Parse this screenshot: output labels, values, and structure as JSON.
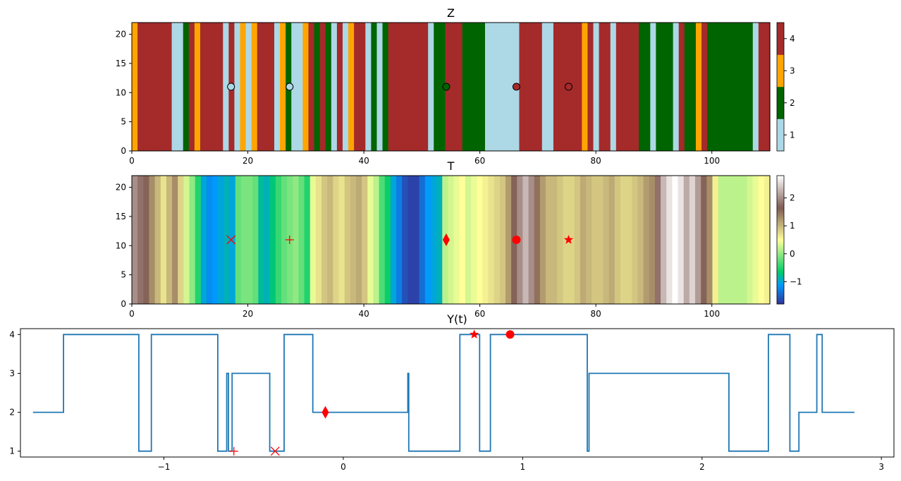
{
  "chart_data": [
    {
      "type": "heatmap",
      "title": "Z",
      "xlim": [
        0,
        110
      ],
      "ylim": [
        0,
        22
      ],
      "x_ticks": [
        0,
        20,
        40,
        60,
        80,
        100
      ],
      "y_ticks": [
        0,
        5,
        10,
        15,
        20
      ],
      "colorbar": {
        "kind": "discrete",
        "ticks": [
          1,
          2,
          3,
          4
        ],
        "levels": [
          {
            "value": 1,
            "color": "#add8e6"
          },
          {
            "value": 2,
            "color": "#006400"
          },
          {
            "value": 3,
            "color": "#ffa500"
          },
          {
            "value": 4,
            "color": "#a52a2a"
          }
        ]
      },
      "column_values": [
        3,
        4,
        4,
        4,
        4,
        4,
        4,
        1,
        1,
        2,
        4,
        3,
        4,
        4,
        4,
        4,
        1,
        4,
        1,
        3,
        1,
        3,
        4,
        4,
        4,
        1,
        3,
        2,
        1,
        1,
        3,
        4,
        2,
        4,
        2,
        1,
        4,
        1,
        3,
        4,
        4,
        1,
        2,
        1,
        2,
        4,
        4,
        4,
        4,
        4,
        4,
        4,
        1,
        2,
        2,
        4,
        4,
        4,
        2,
        2,
        2,
        2,
        1,
        1,
        1,
        1,
        1,
        1,
        4,
        4,
        4,
        4,
        1,
        1,
        4,
        4,
        4,
        4,
        4,
        3,
        4,
        1,
        4,
        4,
        1,
        4,
        4,
        4,
        4,
        2,
        2,
        1,
        2,
        2,
        2,
        1,
        4,
        2,
        2,
        3,
        4,
        2,
        2,
        2,
        2,
        2,
        2,
        2,
        2,
        1,
        4,
        4
      ],
      "markers": [
        {
          "x": 17.1,
          "y": 11,
          "shape": "circle-open",
          "fill": "#add8e6"
        },
        {
          "x": 27.2,
          "y": 11,
          "shape": "circle-open",
          "fill": "#add8e6"
        },
        {
          "x": 54.2,
          "y": 11,
          "shape": "circle-open",
          "fill": "#006400"
        },
        {
          "x": 66.3,
          "y": 11,
          "shape": "circle-open",
          "fill": "#a52a2a"
        },
        {
          "x": 75.3,
          "y": 11,
          "shape": "circle-open",
          "fill": "#a52a2a"
        }
      ]
    },
    {
      "type": "heatmap",
      "title": "T",
      "xlim": [
        0,
        110
      ],
      "ylim": [
        0,
        22
      ],
      "x_ticks": [
        0,
        20,
        40,
        60,
        80,
        100
      ],
      "y_ticks": [
        0,
        5,
        10,
        15,
        20
      ],
      "colorbar": {
        "kind": "continuous",
        "colormap": "terrain",
        "vmin": -1.8,
        "vmax": 2.8,
        "ticks": [
          -1,
          0,
          1,
          2
        ]
      },
      "column_values": [
        2.0,
        1.8,
        1.6,
        1.3,
        1.0,
        0.7,
        1.0,
        1.3,
        0.8,
        0.3,
        0.0,
        -0.5,
        -1.0,
        -1.2,
        -1.1,
        -1.0,
        -0.9,
        -1.0,
        -0.2,
        -0.1,
        -0.1,
        -0.2,
        -0.8,
        -0.9,
        -0.7,
        -0.4,
        -0.2,
        -0.1,
        0.0,
        -0.2,
        -0.5,
        0.4,
        0.7,
        0.9,
        1.0,
        0.8,
        0.7,
        0.9,
        1.0,
        1.1,
        0.9,
        0.4,
        0.2,
        -0.3,
        -0.6,
        -1.0,
        -1.3,
        -1.6,
        -1.7,
        -1.7,
        -1.4,
        -1.1,
        -1.0,
        -0.9,
        0.2,
        0.3,
        0.4,
        0.5,
        0.3,
        0.4,
        0.5,
        0.6,
        0.7,
        0.8,
        0.9,
        1.2,
        1.6,
        2.0,
        2.3,
        2.0,
        1.5,
        1.2,
        1.0,
        1.0,
        0.9,
        0.8,
        0.8,
        0.9,
        1.1,
        1.0,
        0.9,
        0.9,
        1.0,
        1.1,
        0.9,
        0.8,
        0.8,
        0.9,
        1.0,
        1.2,
        1.3,
        1.8,
        2.3,
        2.6,
        2.8,
        2.6,
        2.2,
        2.5,
        2.1,
        1.6,
        1.3,
        0.6,
        0.2,
        0.2,
        0.2,
        0.2,
        0.2,
        0.3,
        0.4,
        0.5,
        0.6
      ],
      "markers": [
        {
          "x": 17.1,
          "y": 11,
          "shape": "x"
        },
        {
          "x": 27.2,
          "y": 11,
          "shape": "plus"
        },
        {
          "x": 54.2,
          "y": 11,
          "shape": "diamond"
        },
        {
          "x": 66.3,
          "y": 11,
          "shape": "circle"
        },
        {
          "x": 75.3,
          "y": 11,
          "shape": "star"
        }
      ]
    },
    {
      "type": "line",
      "title": "Y(t)",
      "xlim": [
        -1.8,
        3.07
      ],
      "ylim": [
        0.85,
        4.15
      ],
      "x_ticks": [
        -1,
        0,
        1,
        2,
        3
      ],
      "y_ticks": [
        1,
        2,
        3,
        4
      ],
      "step_x": [
        -1.73,
        -1.56,
        -1.56,
        -1.14,
        -1.14,
        -1.07,
        -1.07,
        -0.7,
        -0.7,
        -0.65,
        -0.65,
        -0.64,
        -0.64,
        -0.62,
        -0.62,
        -0.41,
        -0.41,
        -0.33,
        -0.33,
        -0.17,
        -0.17,
        0.36,
        0.36,
        0.365,
        0.365,
        0.65,
        0.65,
        0.76,
        0.76,
        0.82,
        0.82,
        1.36,
        1.36,
        1.37,
        1.37,
        2.15,
        2.15,
        2.37,
        2.37,
        2.49,
        2.49,
        2.54,
        2.54,
        2.64,
        2.64,
        2.67,
        2.67,
        2.85
      ],
      "step_y": [
        2,
        2,
        4,
        4,
        1,
        1,
        4,
        4,
        1,
        1,
        3,
        3,
        1,
        1,
        3,
        3,
        1,
        1,
        4,
        4,
        2,
        2,
        3,
        3,
        1,
        1,
        4,
        4,
        1,
        1,
        4,
        4,
        1,
        1,
        3,
        3,
        1,
        1,
        4,
        4,
        1,
        1,
        2,
        2,
        4,
        4,
        2,
        2
      ],
      "markers": [
        {
          "x": -0.61,
          "y": 1.0,
          "shape": "plus"
        },
        {
          "x": -0.38,
          "y": 1.0,
          "shape": "x"
        },
        {
          "x": -0.1,
          "y": 2.0,
          "shape": "diamond"
        },
        {
          "x": 0.73,
          "y": 4.0,
          "shape": "star"
        },
        {
          "x": 0.93,
          "y": 4.0,
          "shape": "circle"
        }
      ]
    }
  ],
  "colors": {
    "line": "#1f77b4",
    "marker": "#ff0000",
    "axis": "#000000"
  }
}
